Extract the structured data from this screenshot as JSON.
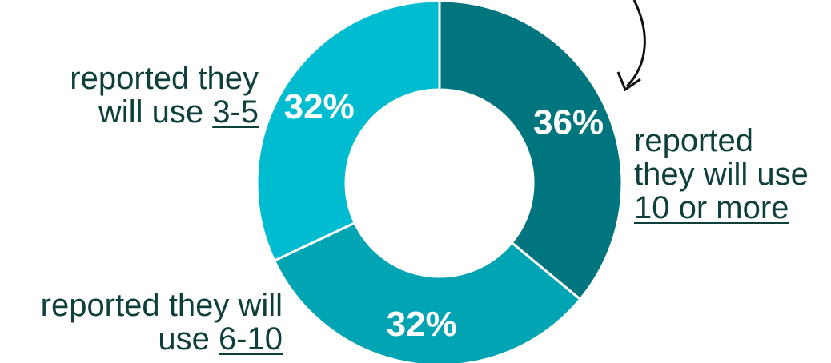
{
  "chart_data": {
    "type": "pie",
    "donut": true,
    "slices": [
      {
        "value": 36,
        "label": "36%",
        "color": "#00757e"
      },
      {
        "value": 32,
        "label": "32%",
        "color": "#00a4b2"
      },
      {
        "value": 32,
        "label": "32%",
        "color": "#00bcd0"
      }
    ],
    "annotations": {
      "three_to_five": {
        "prefix": "reported they",
        "middle": "will use ",
        "underlined": "3-5"
      },
      "six_to_ten": {
        "prefix": "reported they will",
        "middle": "use ",
        "underlined": "6-10"
      },
      "ten_or_more": {
        "line1": "reported",
        "line2": "they will use",
        "underlined": "10 or more"
      }
    },
    "arrow_color": "#111111"
  }
}
